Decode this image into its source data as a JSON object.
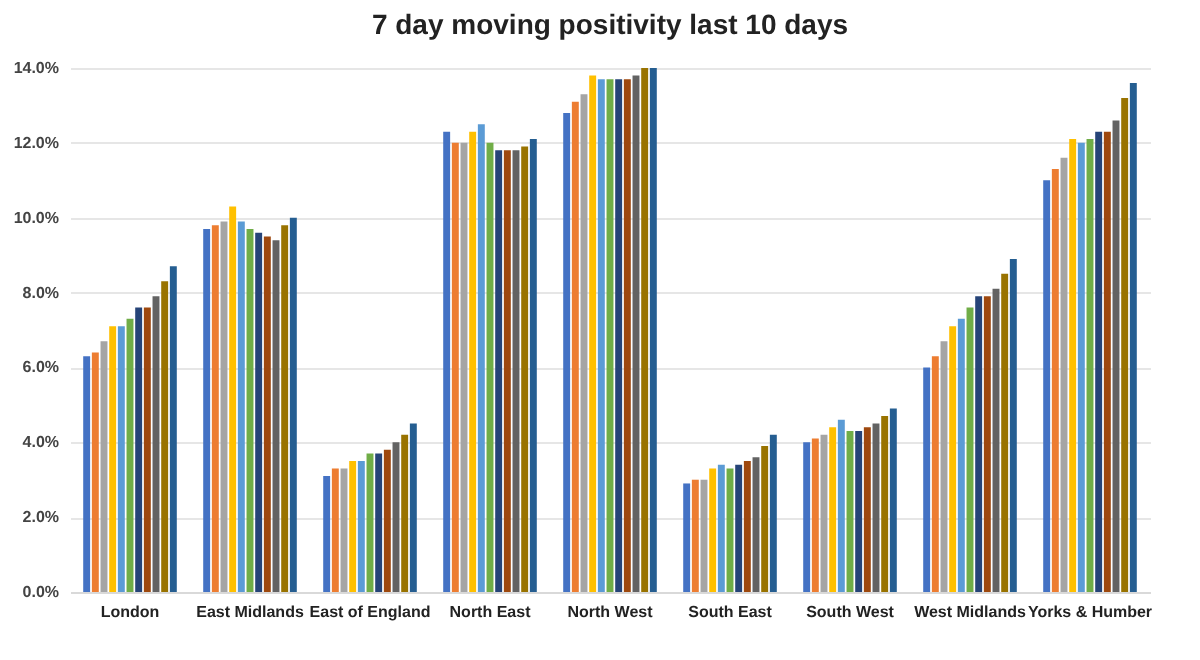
{
  "chart_data": {
    "type": "bar",
    "title": "7 day moving positivity last 10 days",
    "categories": [
      "London",
      "East Midlands",
      "East of England",
      "North East",
      "North West",
      "South East",
      "South West",
      "West Midlands",
      "Yorks & Humber"
    ],
    "ylim": [
      0,
      14
    ],
    "yticks": [
      {
        "value": 0,
        "label": "0.0%"
      },
      {
        "value": 2,
        "label": "2.0%"
      },
      {
        "value": 4,
        "label": "4.0%"
      },
      {
        "value": 6,
        "label": "6.0%"
      },
      {
        "value": 8,
        "label": "8.0%"
      },
      {
        "value": 10,
        "label": "10.0%"
      },
      {
        "value": 12,
        "label": "12.0%"
      },
      {
        "value": 14,
        "label": "14.0%"
      }
    ],
    "grid": "y",
    "legend": false,
    "series": [
      {
        "color": "#4472c4",
        "values": [
          6.3,
          9.7,
          3.1,
          12.3,
          12.8,
          2.9,
          4.0,
          6.0,
          11.0
        ]
      },
      {
        "color": "#ed7d31",
        "values": [
          6.4,
          9.8,
          3.3,
          12.0,
          13.1,
          3.0,
          4.1,
          6.3,
          11.3
        ]
      },
      {
        "color": "#a5a5a5",
        "values": [
          6.7,
          9.9,
          3.3,
          12.0,
          13.3,
          3.0,
          4.2,
          6.7,
          11.6
        ]
      },
      {
        "color": "#ffc000",
        "values": [
          7.1,
          10.3,
          3.5,
          12.3,
          13.8,
          3.3,
          4.4,
          7.1,
          12.1
        ]
      },
      {
        "color": "#5b9bd5",
        "values": [
          7.1,
          9.9,
          3.5,
          12.5,
          13.7,
          3.4,
          4.6,
          7.3,
          12.0
        ]
      },
      {
        "color": "#70ad47",
        "values": [
          7.3,
          9.7,
          3.7,
          12.0,
          13.7,
          3.3,
          4.3,
          7.6,
          12.1
        ]
      },
      {
        "color": "#264478",
        "values": [
          7.6,
          9.6,
          3.7,
          11.8,
          13.7,
          3.4,
          4.3,
          7.9,
          12.3
        ]
      },
      {
        "color": "#9e480e",
        "values": [
          7.6,
          9.5,
          3.8,
          11.8,
          13.7,
          3.5,
          4.4,
          7.9,
          12.3
        ]
      },
      {
        "color": "#636363",
        "values": [
          7.9,
          9.4,
          4.0,
          11.8,
          13.8,
          3.6,
          4.5,
          8.1,
          12.6
        ]
      },
      {
        "color": "#997300",
        "values": [
          8.3,
          9.8,
          4.2,
          11.9,
          14.0,
          3.9,
          4.7,
          8.5,
          13.2
        ]
      },
      {
        "color": "#255e91",
        "values": [
          8.7,
          10.0,
          4.5,
          12.1,
          14.0,
          4.2,
          4.9,
          8.9,
          13.6
        ]
      }
    ]
  }
}
